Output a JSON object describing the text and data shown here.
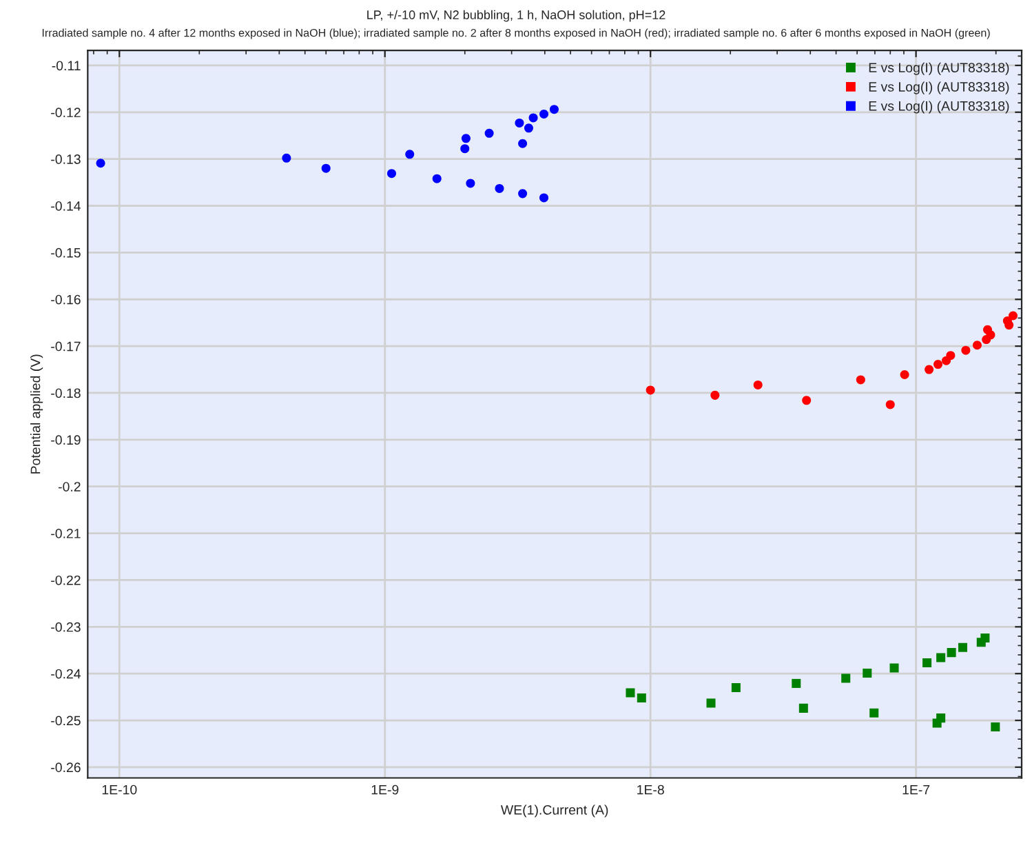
{
  "chart_data": {
    "type": "scatter",
    "title": "LP, +/-10 mV, N2 bubbling, 1 h, NaOH solution, pH=12",
    "subtitle": "Irradiated sample no. 4 after 12 months exposed in NaOH (blue); irradiated sample no. 2 after 8 months exposed in NaOH (red); irradiated sample no. 6 after 6 months exposed in NaOH (green)",
    "xlabel": "WE(1).Current (A)",
    "ylabel": "Potential applied (V)",
    "log": "x",
    "grid": true,
    "legend": "top right",
    "xlim": [
      7.6e-11,
      2.5e-07
    ],
    "xticks": [
      {
        "value": 1e-10,
        "label": "1E-10"
      },
      {
        "value": 1e-09,
        "label": "1E-9"
      },
      {
        "value": 1e-08,
        "label": "1E-8"
      },
      {
        "value": 1e-07,
        "label": "1E-7"
      }
    ],
    "ylim": [
      -0.2623,
      -0.1068
    ],
    "yticks": [
      -0.26,
      -0.25,
      -0.24,
      -0.23,
      -0.22,
      -0.21,
      -0.2,
      -0.19,
      -0.18,
      -0.17,
      -0.16,
      -0.15,
      -0.14,
      -0.13,
      -0.12,
      -0.11
    ],
    "series": [
      {
        "name": "E vs Log(I) (AUT83318)",
        "color": "#008000",
        "marker": "square",
        "x": [
          8.4e-09,
          9.26e-09,
          1.69e-08,
          2.1e-08,
          3.54e-08,
          3.77e-08,
          5.44e-08,
          6.55e-08,
          6.95e-08,
          8.28e-08,
          1.1e-07,
          1.24e-07,
          1.2e-07,
          1.24e-07,
          1.36e-07,
          1.5e-07,
          1.76e-07,
          1.82e-07,
          1.99e-07
        ],
        "values": [
          -0.2441,
          -0.2452,
          -0.2463,
          -0.243,
          -0.2421,
          -0.2474,
          -0.241,
          -0.2399,
          -0.2484,
          -0.2388,
          -0.2377,
          -0.2366,
          -0.2506,
          -0.2495,
          -0.2355,
          -0.2344,
          -0.2333,
          -0.2324,
          -0.2514
        ]
      },
      {
        "name": "E vs Log(I) (AUT83318)",
        "color": "#ff0000",
        "marker": "circle",
        "x": [
          1e-08,
          1.75e-08,
          2.54e-08,
          3.87e-08,
          6.19e-08,
          8e-08,
          9.06e-08,
          1.12e-07,
          1.21e-07,
          1.3e-07,
          1.35e-07,
          1.54e-07,
          1.7e-07,
          1.84e-07,
          1.86e-07,
          1.91e-07,
          2.21e-07,
          2.24e-07,
          2.32e-07
        ],
        "values": [
          -0.1794,
          -0.1805,
          -0.1783,
          -0.1816,
          -0.1772,
          -0.1825,
          -0.1761,
          -0.175,
          -0.1739,
          -0.1731,
          -0.172,
          -0.1709,
          -0.1698,
          -0.1686,
          -0.1665,
          -0.1676,
          -0.1646,
          -0.1655,
          -0.1635
        ]
      },
      {
        "name": "E vs Log(I) (AUT83318)",
        "color": "#0000ff",
        "marker": "circle",
        "x": [
          8.5e-11,
          4.26e-10,
          6e-10,
          1.06e-09,
          1.24e-09,
          1.57e-09,
          2e-09,
          2.02e-09,
          2.1e-09,
          2.47e-09,
          2.7e-09,
          3.21e-09,
          3.3e-09,
          3.3e-09,
          3.48e-09,
          3.62e-09,
          3.97e-09,
          3.97e-09,
          4.34e-09
        ],
        "values": [
          -0.1309,
          -0.1298,
          -0.132,
          -0.1331,
          -0.129,
          -0.1342,
          -0.1278,
          -0.1256,
          -0.1352,
          -0.1245,
          -0.1363,
          -0.1223,
          -0.1267,
          -0.1374,
          -0.1234,
          -0.1212,
          -0.1204,
          -0.1383,
          -0.1194
        ]
      }
    ]
  }
}
